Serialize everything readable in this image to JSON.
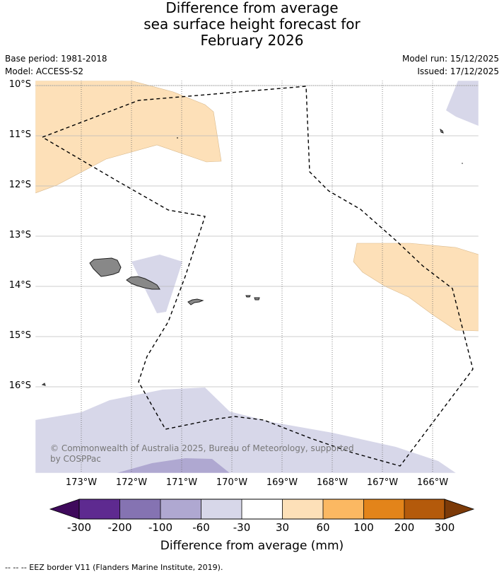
{
  "title": {
    "line1": "Difference from average",
    "line2": "sea surface height forecast for",
    "line3": "February 2026"
  },
  "meta": {
    "base_period": "Base period: 1981-2018",
    "model": "Model: ACCESS-S2",
    "model_run": "Model run: 15/12/2025",
    "issued": "Issued: 17/12/2025"
  },
  "map": {
    "lat_labels": [
      "10°S",
      "11°S",
      "12°S",
      "13°S",
      "14°S",
      "15°S",
      "16°S"
    ],
    "lon_labels": [
      "173°W",
      "172°W",
      "171°W",
      "170°W",
      "169°W",
      "168°W",
      "167°W",
      "166°W"
    ],
    "copyright_line1": "© Commonwealth of Australia 2025, Bureau of Meteorology, supported",
    "copyright_line2": "by COSPPac"
  },
  "colorbar": {
    "title": "Difference from average (mm)",
    "tick_labels": [
      "-300",
      "-200",
      "-100",
      "-60",
      "-30",
      "30",
      "60",
      "100",
      "200",
      "300"
    ],
    "colors": [
      "#3f0a5c",
      "#5e2a90",
      "#8573b2",
      "#afa8d1",
      "#d7d7e9",
      "#ffffff",
      "#fde0b8",
      "#fbb862",
      "#e3841a",
      "#b45a0b",
      "#7c3a08"
    ]
  },
  "footnote": "--  --  -- EEZ border V11 (Flanders Marine Institute, 2019)."
}
